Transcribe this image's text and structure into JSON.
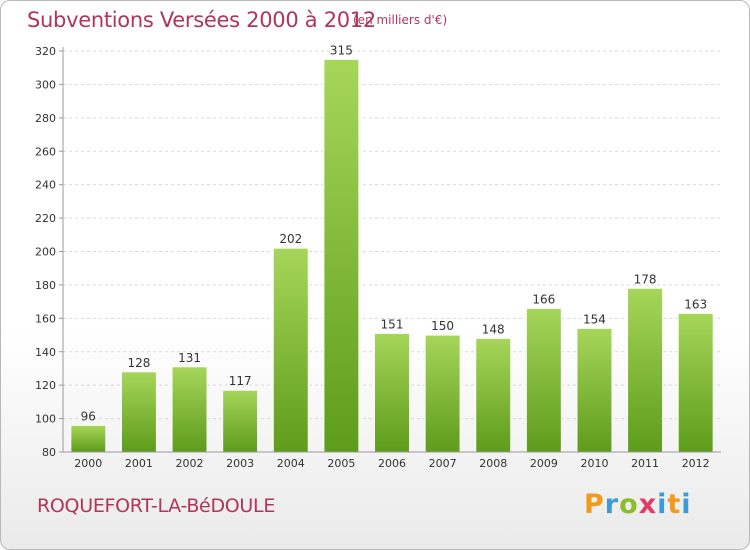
{
  "header": {
    "title": "Subventions Versées 2000 à 2012",
    "unit": "(en milliers d'€)"
  },
  "footer": {
    "commune": "ROQUEFORT-LA-BéDOULE",
    "logo": "Proxiti"
  },
  "colors": {
    "title": "#b0355a",
    "bar_light": "#a6d65a",
    "bar_dark": "#5e9c1b",
    "grid": "#d9d9d9"
  },
  "chart_data": {
    "type": "bar",
    "categories": [
      "2000",
      "2001",
      "2002",
      "2003",
      "2004",
      "2005",
      "2006",
      "2007",
      "2008",
      "2009",
      "2010",
      "2011",
      "2012"
    ],
    "values": [
      96,
      128,
      131,
      117,
      202,
      315,
      151,
      150,
      148,
      166,
      154,
      178,
      163
    ],
    "ylim": [
      80,
      320
    ],
    "yticks": [
      80,
      100,
      120,
      140,
      160,
      180,
      200,
      220,
      240,
      260,
      280,
      300,
      320
    ],
    "grid": "horizontal dashed",
    "legend": "none"
  }
}
